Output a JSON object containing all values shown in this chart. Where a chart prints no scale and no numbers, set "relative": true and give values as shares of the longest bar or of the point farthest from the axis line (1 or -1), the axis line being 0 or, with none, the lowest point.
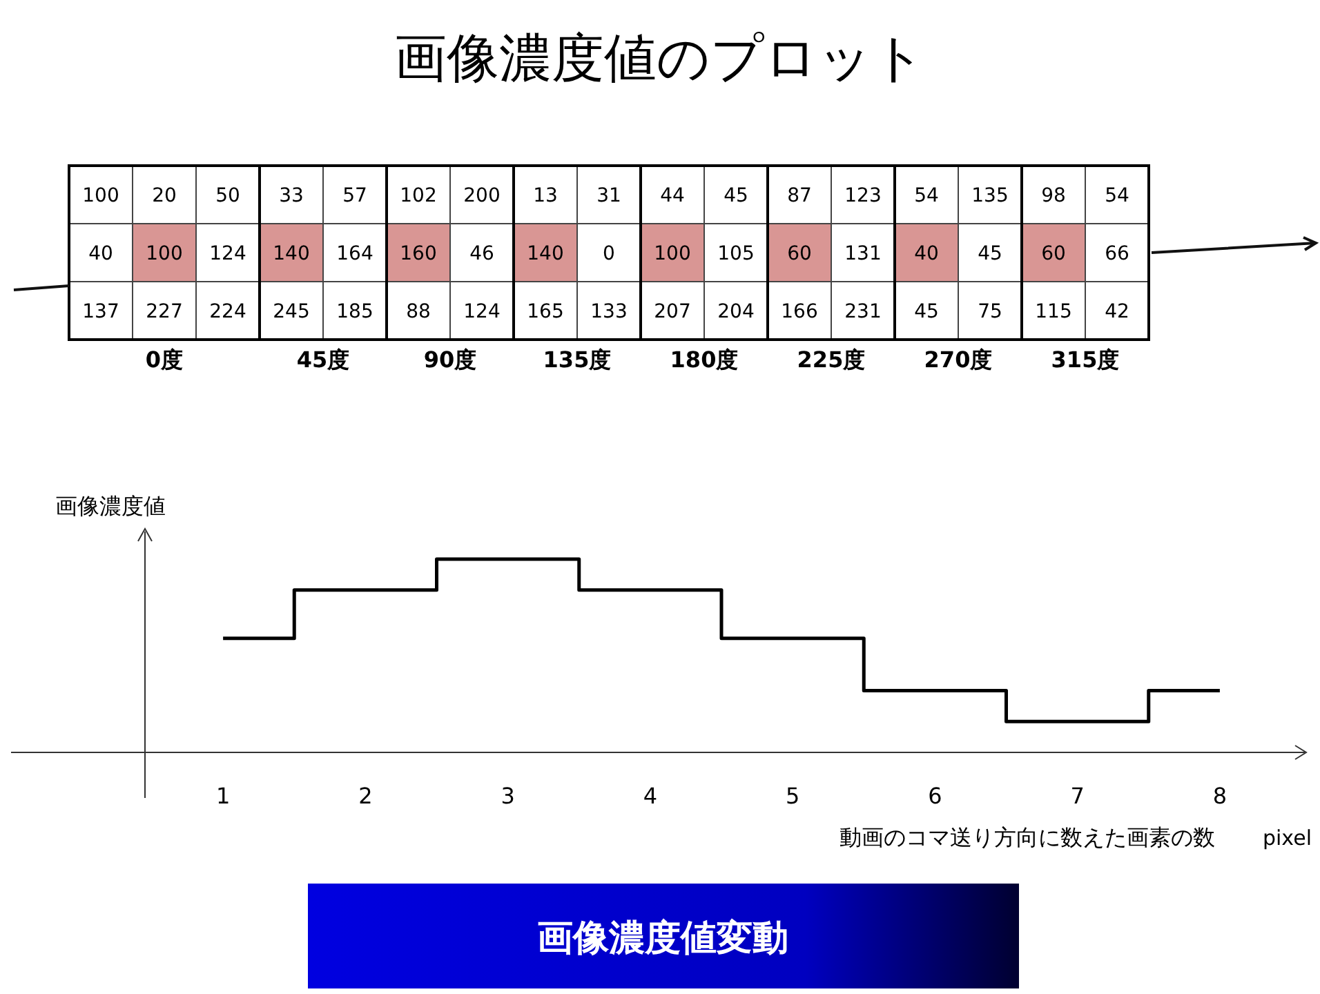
{
  "chart_data": [
    {
      "type": "heatmap",
      "title": "画像濃度値のプロット",
      "annotations": [
        "0度",
        "45度",
        "90度",
        "135度",
        "180度",
        "225度",
        "270度",
        "315度"
      ],
      "categories": [
        null,
        null,
        null,
        null,
        null,
        null,
        null,
        null,
        null,
        null,
        null,
        null,
        null,
        null,
        null,
        null,
        null
      ],
      "y_categories": [
        null,
        null,
        null
      ],
      "data_labels": true,
      "cells": [
        [
          100,
          20,
          50,
          33,
          57,
          102,
          200,
          13,
          31,
          44,
          45,
          87,
          123,
          54,
          135,
          98,
          54
        ],
        [
          40,
          100,
          124,
          140,
          164,
          160,
          46,
          140,
          0,
          100,
          105,
          60,
          131,
          40,
          45,
          60,
          66
        ],
        [
          137,
          227,
          224,
          245,
          185,
          88,
          124,
          165,
          133,
          207,
          204,
          166,
          231,
          45,
          75,
          115,
          42
        ]
      ]
    },
    {
      "type": "step",
      "ylabel": "画像濃度値",
      "xlabel": "動画のコマ送り方向に数えた画素の数",
      "annotations": [
        "pixel",
        "画像濃度値変動"
      ],
      "relative": true,
      "categories": [
        "1",
        "2",
        "3",
        "4",
        "5",
        "6",
        "7",
        "8"
      ],
      "values": [
        0.59,
        0.84,
        1,
        0.84,
        0.59,
        0.32,
        0.16,
        0.32
      ],
      "color": "#000000"
    }
  ]
}
